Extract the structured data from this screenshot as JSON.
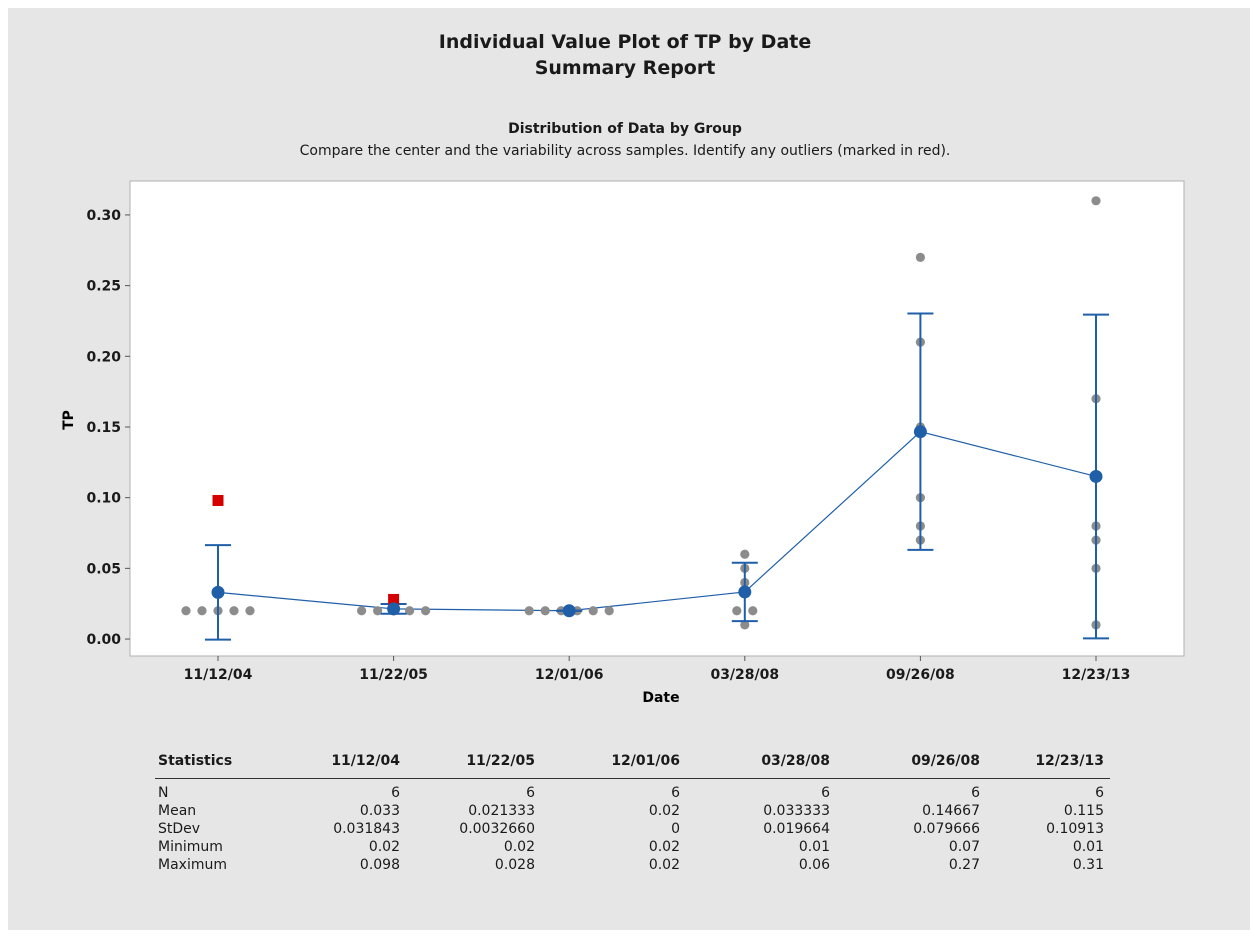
{
  "report": {
    "title": "Individual Value Plot of TP by Date",
    "subtitle": "Summary Report",
    "plot_heading": "Distribution of Data by Group",
    "plot_caption": "Compare the center and the variability across samples. Identify any outliers (marked in red)."
  },
  "colors": {
    "background": "#e6e6e6",
    "plot_area": "#ffffff",
    "mean_line": "#1f5fa8",
    "data_point": "#8c8c8c",
    "outlier": "#d40000"
  },
  "chart_data": {
    "type": "scatter",
    "title": "Individual Value Plot of TP by Date",
    "subtitle": "Summary Report",
    "xlabel": "Date",
    "ylabel": "TP",
    "categories": [
      "11/12/04",
      "11/22/05",
      "12/01/06",
      "03/28/08",
      "09/26/08",
      "12/23/13"
    ],
    "yticks": [
      "0.00",
      "0.05",
      "0.10",
      "0.15",
      "0.20",
      "0.25",
      "0.30"
    ],
    "ylim": [
      -0.012,
      0.324
    ],
    "grid": false,
    "groups": [
      {
        "points": [
          0.02,
          0.02,
          0.02,
          0.02,
          0.02
        ],
        "outliers": [
          0.098
        ],
        "mean": 0.033,
        "ci": [
          -0.0004,
          0.0664
        ]
      },
      {
        "points": [
          0.02,
          0.02,
          0.02,
          0.02,
          0.02
        ],
        "outliers": [
          0.028
        ],
        "mean": 0.021333,
        "ci": [
          0.0179,
          0.0248
        ]
      },
      {
        "points": [
          0.02,
          0.02,
          0.02,
          0.02,
          0.02,
          0.02
        ],
        "outliers": [],
        "mean": 0.02,
        "ci": [
          0.02,
          0.02
        ]
      },
      {
        "points": [
          0.01,
          0.02,
          0.02,
          0.04,
          0.05,
          0.06
        ],
        "outliers": [],
        "mean": 0.033333,
        "ci": [
          0.0127,
          0.054
        ]
      },
      {
        "points": [
          0.07,
          0.08,
          0.1,
          0.15,
          0.21,
          0.27
        ],
        "outliers": [],
        "mean": 0.14667,
        "ci": [
          0.0631,
          0.2303
        ]
      },
      {
        "points": [
          0.01,
          0.05,
          0.07,
          0.08,
          0.17,
          0.31
        ],
        "outliers": [],
        "mean": 0.115,
        "ci": [
          0.0005,
          0.2295
        ]
      }
    ]
  },
  "stats": {
    "header": [
      "Statistics",
      "11/12/04",
      "11/22/05",
      "12/01/06",
      "03/28/08",
      "09/26/08",
      "12/23/13"
    ],
    "rows": [
      {
        "label": "N",
        "values": [
          "6",
          "6",
          "6",
          "6",
          "6",
          "6"
        ]
      },
      {
        "label": "Mean",
        "values": [
          "0.033",
          "0.021333",
          "0.02",
          "0.033333",
          "0.14667",
          "0.115"
        ]
      },
      {
        "label": "StDev",
        "values": [
          "0.031843",
          "0.0032660",
          "0",
          "0.019664",
          "0.079666",
          "0.10913"
        ]
      },
      {
        "label": "Minimum",
        "values": [
          "0.02",
          "0.02",
          "0.02",
          "0.01",
          "0.07",
          "0.01"
        ]
      },
      {
        "label": "Maximum",
        "values": [
          "0.098",
          "0.028",
          "0.02",
          "0.06",
          "0.27",
          "0.31"
        ]
      }
    ]
  }
}
